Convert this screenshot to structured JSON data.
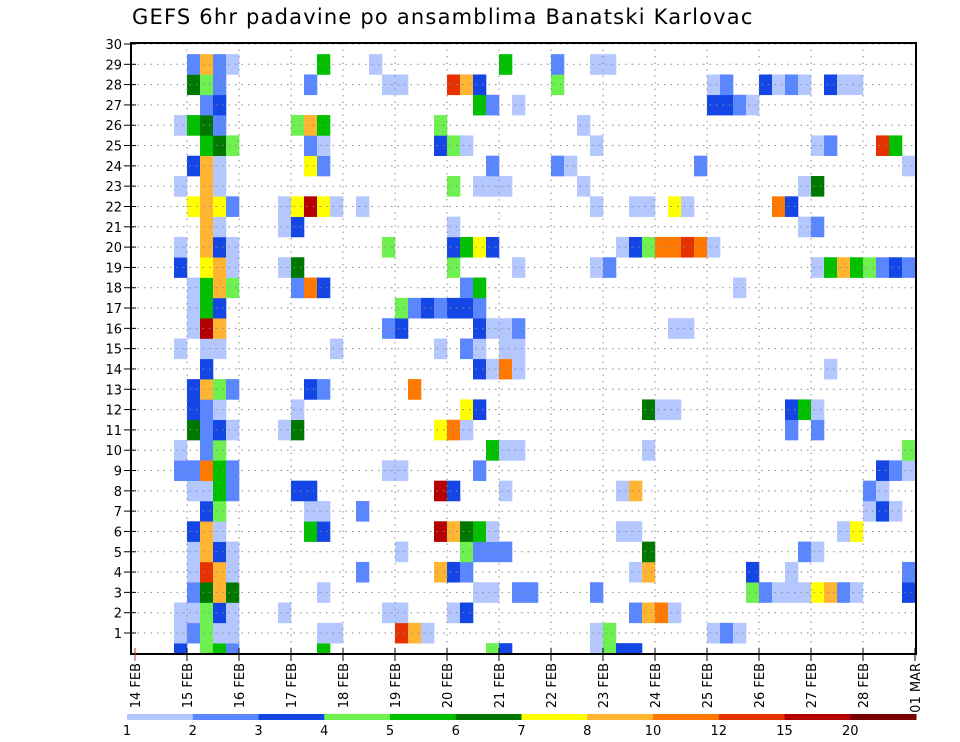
{
  "chart_data": {
    "type": "heatmap",
    "title": "GEFS 6hr padavine po ansamblima Banatski Karlovac",
    "xlabel": "",
    "ylabel": "",
    "x_tick_labels": [
      "14 FEB",
      "15 FEB",
      "16 FEB",
      "17 FEB",
      "18 FEB",
      "19 FEB",
      "20 FEB",
      "21 FEB",
      "22 FEB",
      "23 FEB",
      "24 FEB",
      "25 FEB",
      "26 FEB",
      "27 FEB",
      "28 FEB",
      "01 MAR"
    ],
    "y_tick_labels": [
      "1",
      "2",
      "3",
      "4",
      "5",
      "6",
      "7",
      "8",
      "9",
      "10",
      "11",
      "12",
      "13",
      "14",
      "15",
      "16",
      "17",
      "18",
      "19",
      "20",
      "21",
      "22",
      "23",
      "24",
      "25",
      "26",
      "27",
      "28",
      "29",
      "30"
    ],
    "x_unit": "6-hour step from 14 FEB 00Z",
    "x_range": [
      0,
      60
    ],
    "y_range": [
      0,
      30
    ],
    "grid": true,
    "legend": {
      "placement": "bottom",
      "labels": [
        "1",
        "2",
        "3",
        "4",
        "5",
        "6",
        "7",
        "8",
        "10",
        "12",
        "15",
        "20"
      ],
      "colors": [
        "#b4c8ff",
        "#5a87ff",
        "#1446e6",
        "#6ef050",
        "#00c000",
        "#007800",
        "#ffff00",
        "#ffb432",
        "#ff7800",
        "#e63200",
        "#b40000",
        "#780000"
      ]
    },
    "class_keys": "abcdefghijkl",
    "rows": {
      "30": [
        [
          4,
          "b"
        ],
        [
          5,
          "h"
        ],
        [
          6,
          "b"
        ],
        [
          7,
          "a"
        ],
        [
          14,
          "e"
        ],
        [
          18,
          "a"
        ],
        [
          28,
          "e"
        ],
        [
          32,
          "b"
        ],
        [
          35,
          "a"
        ],
        [
          36,
          "a"
        ]
      ],
      "29": [
        [
          4,
          "f"
        ],
        [
          5,
          "d"
        ],
        [
          6,
          "b"
        ],
        [
          13,
          "b"
        ],
        [
          19,
          "a"
        ],
        [
          20,
          "a"
        ],
        [
          24,
          "j"
        ],
        [
          25,
          "h"
        ],
        [
          26,
          "c"
        ],
        [
          32,
          "d"
        ],
        [
          44,
          "a"
        ],
        [
          45,
          "b"
        ],
        [
          48,
          "c"
        ],
        [
          49,
          "a"
        ],
        [
          50,
          "b"
        ],
        [
          51,
          "a"
        ],
        [
          53,
          "c"
        ],
        [
          54,
          "a"
        ],
        [
          55,
          "a"
        ]
      ],
      "28": [
        [
          5,
          "b"
        ],
        [
          6,
          "c"
        ],
        [
          26,
          "e"
        ],
        [
          27,
          "b"
        ],
        [
          29,
          "a"
        ],
        [
          44,
          "c"
        ],
        [
          45,
          "c"
        ],
        [
          46,
          "b"
        ],
        [
          47,
          "a"
        ]
      ],
      "27": [
        [
          3,
          "a"
        ],
        [
          4,
          "e"
        ],
        [
          5,
          "f"
        ],
        [
          6,
          "b"
        ],
        [
          12,
          "d"
        ],
        [
          13,
          "h"
        ],
        [
          14,
          "e"
        ],
        [
          23,
          "d"
        ],
        [
          34,
          "a"
        ]
      ],
      "26": [
        [
          5,
          "e"
        ],
        [
          6,
          "f"
        ],
        [
          7,
          "d"
        ],
        [
          13,
          "b"
        ],
        [
          14,
          "a"
        ],
        [
          23,
          "c"
        ],
        [
          24,
          "d"
        ],
        [
          25,
          "a"
        ],
        [
          35,
          "a"
        ],
        [
          52,
          "a"
        ],
        [
          53,
          "b"
        ],
        [
          57,
          "j"
        ],
        [
          58,
          "e"
        ]
      ],
      "25": [
        [
          4,
          "c"
        ],
        [
          5,
          "h"
        ],
        [
          6,
          "a"
        ],
        [
          13,
          "g"
        ],
        [
          14,
          "b"
        ],
        [
          27,
          "b"
        ],
        [
          32,
          "b"
        ],
        [
          33,
          "a"
        ],
        [
          43,
          "b"
        ],
        [
          59,
          "a"
        ]
      ],
      "24": [
        [
          3,
          "a"
        ],
        [
          5,
          "h"
        ],
        [
          6,
          "a"
        ],
        [
          24,
          "d"
        ],
        [
          26,
          "a"
        ],
        [
          27,
          "a"
        ],
        [
          28,
          "a"
        ],
        [
          34,
          "a"
        ],
        [
          51,
          "a"
        ],
        [
          52,
          "f"
        ]
      ],
      "23": [
        [
          4,
          "g"
        ],
        [
          5,
          "h"
        ],
        [
          6,
          "g"
        ],
        [
          7,
          "b"
        ],
        [
          11,
          "a"
        ],
        [
          12,
          "g"
        ],
        [
          13,
          "k"
        ],
        [
          14,
          "g"
        ],
        [
          15,
          "a"
        ],
        [
          17,
          "a"
        ],
        [
          35,
          "a"
        ],
        [
          38,
          "a"
        ],
        [
          39,
          "a"
        ],
        [
          41,
          "g"
        ],
        [
          42,
          "a"
        ],
        [
          49,
          "i"
        ],
        [
          50,
          "c"
        ]
      ],
      "22": [
        [
          5,
          "h"
        ],
        [
          6,
          "a"
        ],
        [
          11,
          "a"
        ],
        [
          12,
          "c"
        ],
        [
          24,
          "a"
        ],
        [
          51,
          "a"
        ],
        [
          52,
          "b"
        ]
      ],
      "21": [
        [
          3,
          "a"
        ],
        [
          5,
          "h"
        ],
        [
          6,
          "c"
        ],
        [
          7,
          "a"
        ],
        [
          19,
          "d"
        ],
        [
          24,
          "c"
        ],
        [
          25,
          "e"
        ],
        [
          26,
          "g"
        ],
        [
          27,
          "c"
        ],
        [
          37,
          "a"
        ],
        [
          38,
          "c"
        ],
        [
          39,
          "d"
        ],
        [
          40,
          "i"
        ],
        [
          41,
          "i"
        ],
        [
          42,
          "j"
        ],
        [
          43,
          "i"
        ],
        [
          44,
          "a"
        ]
      ],
      "20": [
        [
          3,
          "c"
        ],
        [
          5,
          "g"
        ],
        [
          6,
          "h"
        ],
        [
          7,
          "a"
        ],
        [
          11,
          "a"
        ],
        [
          12,
          "f"
        ],
        [
          24,
          "d"
        ],
        [
          29,
          "a"
        ],
        [
          35,
          "a"
        ],
        [
          36,
          "b"
        ],
        [
          52,
          "a"
        ],
        [
          53,
          "e"
        ],
        [
          54,
          "h"
        ],
        [
          55,
          "e"
        ],
        [
          56,
          "d"
        ],
        [
          57,
          "b"
        ],
        [
          58,
          "c"
        ],
        [
          59,
          "b"
        ]
      ],
      "19": [
        [
          4,
          "a"
        ],
        [
          5,
          "e"
        ],
        [
          6,
          "h"
        ],
        [
          7,
          "d"
        ],
        [
          12,
          "b"
        ],
        [
          13,
          "i"
        ],
        [
          14,
          "c"
        ],
        [
          25,
          "b"
        ],
        [
          26,
          "e"
        ],
        [
          46,
          "a"
        ]
      ],
      "18": [
        [
          4,
          "a"
        ],
        [
          5,
          "e"
        ],
        [
          6,
          "c"
        ],
        [
          20,
          "d"
        ],
        [
          21,
          "b"
        ],
        [
          22,
          "c"
        ],
        [
          23,
          "b"
        ],
        [
          24,
          "c"
        ],
        [
          25,
          "c"
        ],
        [
          26,
          "b"
        ]
      ],
      "17": [
        [
          4,
          "a"
        ],
        [
          5,
          "k"
        ],
        [
          6,
          "h"
        ],
        [
          19,
          "b"
        ],
        [
          20,
          "c"
        ],
        [
          26,
          "c"
        ],
        [
          27,
          "a"
        ],
        [
          28,
          "a"
        ],
        [
          29,
          "b"
        ],
        [
          41,
          "a"
        ],
        [
          42,
          "a"
        ]
      ],
      "16": [
        [
          3,
          "a"
        ],
        [
          5,
          "a"
        ],
        [
          6,
          "a"
        ],
        [
          15,
          "a"
        ],
        [
          23,
          "a"
        ],
        [
          25,
          "b"
        ],
        [
          26,
          "a"
        ],
        [
          28,
          "a"
        ],
        [
          29,
          "a"
        ]
      ],
      "15": [
        [
          5,
          "c"
        ],
        [
          26,
          "c"
        ],
        [
          27,
          "a"
        ],
        [
          28,
          "i"
        ],
        [
          29,
          "a"
        ],
        [
          53,
          "a"
        ]
      ],
      "14": [
        [
          4,
          "c"
        ],
        [
          5,
          "h"
        ],
        [
          6,
          "d"
        ],
        [
          7,
          "b"
        ],
        [
          13,
          "c"
        ],
        [
          14,
          "b"
        ],
        [
          21,
          "i"
        ]
      ],
      "13": [
        [
          4,
          "c"
        ],
        [
          5,
          "b"
        ],
        [
          6,
          "a"
        ],
        [
          12,
          "a"
        ],
        [
          25,
          "g"
        ],
        [
          26,
          "c"
        ],
        [
          39,
          "f"
        ],
        [
          40,
          "a"
        ],
        [
          41,
          "a"
        ],
        [
          50,
          "c"
        ],
        [
          51,
          "e"
        ],
        [
          52,
          "a"
        ]
      ],
      "12": [
        [
          4,
          "f"
        ],
        [
          5,
          "b"
        ],
        [
          6,
          "c"
        ],
        [
          7,
          "a"
        ],
        [
          11,
          "a"
        ],
        [
          12,
          "f"
        ],
        [
          23,
          "g"
        ],
        [
          24,
          "i"
        ],
        [
          25,
          "a"
        ],
        [
          50,
          "b"
        ],
        [
          52,
          "b"
        ]
      ],
      "11": [
        [
          3,
          "a"
        ],
        [
          5,
          "b"
        ],
        [
          6,
          "d"
        ],
        [
          27,
          "e"
        ],
        [
          28,
          "a"
        ],
        [
          29,
          "a"
        ],
        [
          39,
          "a"
        ],
        [
          59,
          "d"
        ]
      ],
      "10": [
        [
          3,
          "b"
        ],
        [
          4,
          "b"
        ],
        [
          5,
          "i"
        ],
        [
          6,
          "e"
        ],
        [
          7,
          "b"
        ],
        [
          19,
          "a"
        ],
        [
          20,
          "a"
        ],
        [
          26,
          "b"
        ],
        [
          57,
          "c"
        ],
        [
          58,
          "b"
        ],
        [
          59,
          "a"
        ]
      ],
      "9": [
        [
          4,
          "a"
        ],
        [
          5,
          "a"
        ],
        [
          6,
          "e"
        ],
        [
          7,
          "b"
        ],
        [
          12,
          "c"
        ],
        [
          13,
          "c"
        ],
        [
          23,
          "k"
        ],
        [
          24,
          "c"
        ],
        [
          28,
          "a"
        ],
        [
          37,
          "a"
        ],
        [
          38,
          "h"
        ],
        [
          56,
          "b"
        ],
        [
          57,
          "a"
        ]
      ],
      "8": [
        [
          5,
          "c"
        ],
        [
          6,
          "d"
        ],
        [
          13,
          "a"
        ],
        [
          14,
          "a"
        ],
        [
          17,
          "b"
        ],
        [
          56,
          "a"
        ],
        [
          57,
          "c"
        ],
        [
          58,
          "a"
        ]
      ],
      "7": [
        [
          4,
          "c"
        ],
        [
          5,
          "h"
        ],
        [
          6,
          "a"
        ],
        [
          13,
          "e"
        ],
        [
          14,
          "c"
        ],
        [
          23,
          "k"
        ],
        [
          24,
          "h"
        ],
        [
          25,
          "f"
        ],
        [
          26,
          "e"
        ],
        [
          27,
          "a"
        ],
        [
          37,
          "a"
        ],
        [
          38,
          "a"
        ],
        [
          54,
          "a"
        ],
        [
          55,
          "g"
        ]
      ],
      "6": [
        [
          4,
          "a"
        ],
        [
          5,
          "h"
        ],
        [
          6,
          "c"
        ],
        [
          7,
          "a"
        ],
        [
          20,
          "a"
        ],
        [
          25,
          "d"
        ],
        [
          26,
          "b"
        ],
        [
          27,
          "b"
        ],
        [
          28,
          "b"
        ],
        [
          39,
          "f"
        ],
        [
          51,
          "b"
        ],
        [
          52,
          "a"
        ]
      ],
      "5": [
        [
          4,
          "a"
        ],
        [
          5,
          "j"
        ],
        [
          6,
          "h"
        ],
        [
          7,
          "a"
        ],
        [
          17,
          "b"
        ],
        [
          23,
          "h"
        ],
        [
          24,
          "c"
        ],
        [
          25,
          "b"
        ],
        [
          38,
          "a"
        ],
        [
          39,
          "h"
        ],
        [
          47,
          "c"
        ],
        [
          50,
          "a"
        ],
        [
          59,
          "b"
        ]
      ],
      "4": [
        [
          4,
          "b"
        ],
        [
          5,
          "f"
        ],
        [
          6,
          "h"
        ],
        [
          7,
          "f"
        ],
        [
          14,
          "a"
        ],
        [
          26,
          "a"
        ],
        [
          27,
          "a"
        ],
        [
          29,
          "b"
        ],
        [
          30,
          "b"
        ],
        [
          35,
          "b"
        ],
        [
          47,
          "d"
        ],
        [
          48,
          "b"
        ],
        [
          49,
          "a"
        ],
        [
          50,
          "a"
        ],
        [
          51,
          "a"
        ],
        [
          52,
          "g"
        ],
        [
          53,
          "h"
        ],
        [
          54,
          "b"
        ],
        [
          55,
          "a"
        ],
        [
          59,
          "c"
        ]
      ],
      "3": [
        [
          3,
          "a"
        ],
        [
          4,
          "a"
        ],
        [
          5,
          "d"
        ],
        [
          6,
          "c"
        ],
        [
          7,
          "a"
        ],
        [
          11,
          "a"
        ],
        [
          19,
          "a"
        ],
        [
          20,
          "a"
        ],
        [
          24,
          "a"
        ],
        [
          25,
          "c"
        ],
        [
          38,
          "b"
        ],
        [
          39,
          "h"
        ],
        [
          40,
          "i"
        ],
        [
          41,
          "a"
        ]
      ],
      "2": [
        [
          3,
          "a"
        ],
        [
          4,
          "b"
        ],
        [
          5,
          "d"
        ],
        [
          6,
          "a"
        ],
        [
          7,
          "a"
        ],
        [
          14,
          "a"
        ],
        [
          15,
          "a"
        ],
        [
          20,
          "j"
        ],
        [
          21,
          "h"
        ],
        [
          22,
          "a"
        ],
        [
          35,
          "a"
        ],
        [
          36,
          "d"
        ],
        [
          44,
          "a"
        ],
        [
          45,
          "b"
        ],
        [
          46,
          "a"
        ]
      ],
      "1": [
        [
          3,
          "c"
        ],
        [
          5,
          "d"
        ],
        [
          6,
          "e"
        ],
        [
          7,
          "b"
        ],
        [
          14,
          "e"
        ],
        [
          27,
          "d"
        ],
        [
          28,
          "c"
        ],
        [
          35,
          "a"
        ],
        [
          36,
          "d"
        ],
        [
          37,
          "c"
        ],
        [
          38,
          "c"
        ]
      ]
    }
  }
}
